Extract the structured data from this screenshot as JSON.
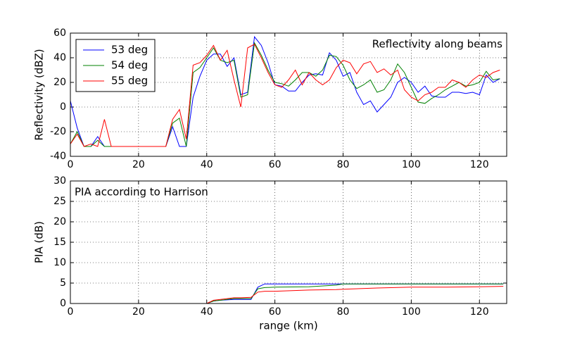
{
  "chart_data": [
    {
      "type": "line",
      "ylabel": "Reflectivity (dBZ)",
      "annotation": "Reflectivity along beams",
      "annotation_loc": "upper right",
      "xlim": [
        0,
        128
      ],
      "xticks": [
        0,
        20,
        40,
        60,
        80,
        100,
        120
      ],
      "ylim": [
        -40,
        60
      ],
      "yticks": [
        -40,
        -20,
        0,
        20,
        40,
        60
      ],
      "grid": true,
      "legend": "upper left",
      "x": [
        0,
        2,
        4,
        6,
        8,
        10,
        12,
        14,
        16,
        18,
        20,
        22,
        24,
        26,
        28,
        30,
        32,
        34,
        36,
        38,
        40,
        42,
        44,
        46,
        48,
        50,
        52,
        54,
        56,
        58,
        60,
        62,
        64,
        66,
        68,
        70,
        72,
        74,
        76,
        78,
        80,
        82,
        84,
        86,
        88,
        90,
        92,
        94,
        96,
        98,
        100,
        102,
        104,
        106,
        108,
        110,
        112,
        114,
        116,
        118,
        120,
        122,
        124,
        126
      ],
      "series": [
        {
          "name": "53 deg",
          "color": "#0000ff",
          "values": [
            5,
            -17,
            -32,
            -32,
            -24,
            -32,
            -32,
            -32,
            -32,
            -32,
            -32,
            -32,
            -32,
            -32,
            -32,
            -16,
            -32,
            -32,
            8,
            25,
            38,
            43,
            43,
            33,
            40,
            10,
            12,
            57,
            50,
            36,
            18,
            17,
            13,
            13,
            20,
            26,
            27,
            26,
            44,
            38,
            25,
            28,
            12,
            2,
            5,
            -4,
            2,
            8,
            20,
            24,
            20,
            12,
            17,
            9,
            8,
            8,
            12,
            12,
            11,
            12,
            10,
            26,
            20,
            23
          ]
        },
        {
          "name": "54 deg",
          "color": "#008000",
          "values": [
            -30,
            -20,
            -32,
            -32,
            -27,
            -32,
            -32,
            -32,
            -32,
            -32,
            -32,
            -32,
            -32,
            -32,
            -32,
            -13,
            -9,
            -32,
            28,
            32,
            40,
            48,
            38,
            36,
            38,
            8,
            10,
            52,
            42,
            30,
            20,
            19,
            17,
            22,
            28,
            28,
            25,
            30,
            42,
            41,
            34,
            22,
            15,
            18,
            22,
            12,
            14,
            22,
            35,
            28,
            16,
            4,
            3,
            7,
            10,
            14,
            17,
            20,
            17,
            18,
            20,
            29,
            22,
            23
          ]
        },
        {
          "name": "55 deg",
          "color": "#ff0000",
          "values": [
            -30,
            -22,
            -32,
            -30,
            -32,
            -10,
            -32,
            -32,
            -32,
            -32,
            -32,
            -32,
            -32,
            -32,
            -32,
            -10,
            -2,
            -26,
            34,
            36,
            42,
            50,
            38,
            46,
            22,
            0,
            48,
            51,
            40,
            28,
            18,
            16,
            22,
            30,
            18,
            28,
            22,
            18,
            22,
            32,
            38,
            36,
            27,
            35,
            37,
            28,
            31,
            26,
            30,
            14,
            8,
            5,
            10,
            12,
            16,
            16,
            22,
            20,
            16,
            22,
            26,
            24,
            28,
            30
          ]
        }
      ]
    },
    {
      "type": "line",
      "ylabel": "PIA (dB)",
      "xlabel": "range (km)",
      "annotation": "PIA according to Harrison",
      "annotation_loc": "upper left",
      "xlim": [
        0,
        128
      ],
      "xticks": [
        0,
        20,
        40,
        60,
        80,
        100,
        120
      ],
      "ylim": [
        0,
        30
      ],
      "yticks": [
        0,
        5,
        10,
        15,
        20,
        25,
        30
      ],
      "grid": true,
      "x": [
        0,
        40,
        42,
        44,
        48,
        50,
        53,
        55,
        57,
        60,
        70,
        78,
        80,
        90,
        100,
        110,
        120,
        127
      ],
      "series": [
        {
          "name": "53 deg",
          "color": "#0000ff",
          "values": [
            0,
            0,
            0.6,
            0.8,
            1,
            1,
            1,
            4,
            4.8,
            4.8,
            4.8,
            4.8,
            4.8,
            4.8,
            4.8,
            4.8,
            4.8,
            4.8
          ]
        },
        {
          "name": "54 deg",
          "color": "#008000",
          "values": [
            0,
            0,
            0.6,
            0.8,
            1.2,
            1.2,
            1.2,
            3.6,
            3.9,
            4,
            4.1,
            4.5,
            4.8,
            4.8,
            4.8,
            4.8,
            4.8,
            4.8
          ]
        },
        {
          "name": "55 deg",
          "color": "#ff0000",
          "values": [
            0,
            0,
            0.8,
            1,
            1.4,
            1.4,
            1.5,
            2.8,
            3,
            3,
            3.3,
            3.4,
            3.5,
            3.8,
            4,
            4,
            4.1,
            4.2
          ]
        }
      ]
    }
  ]
}
